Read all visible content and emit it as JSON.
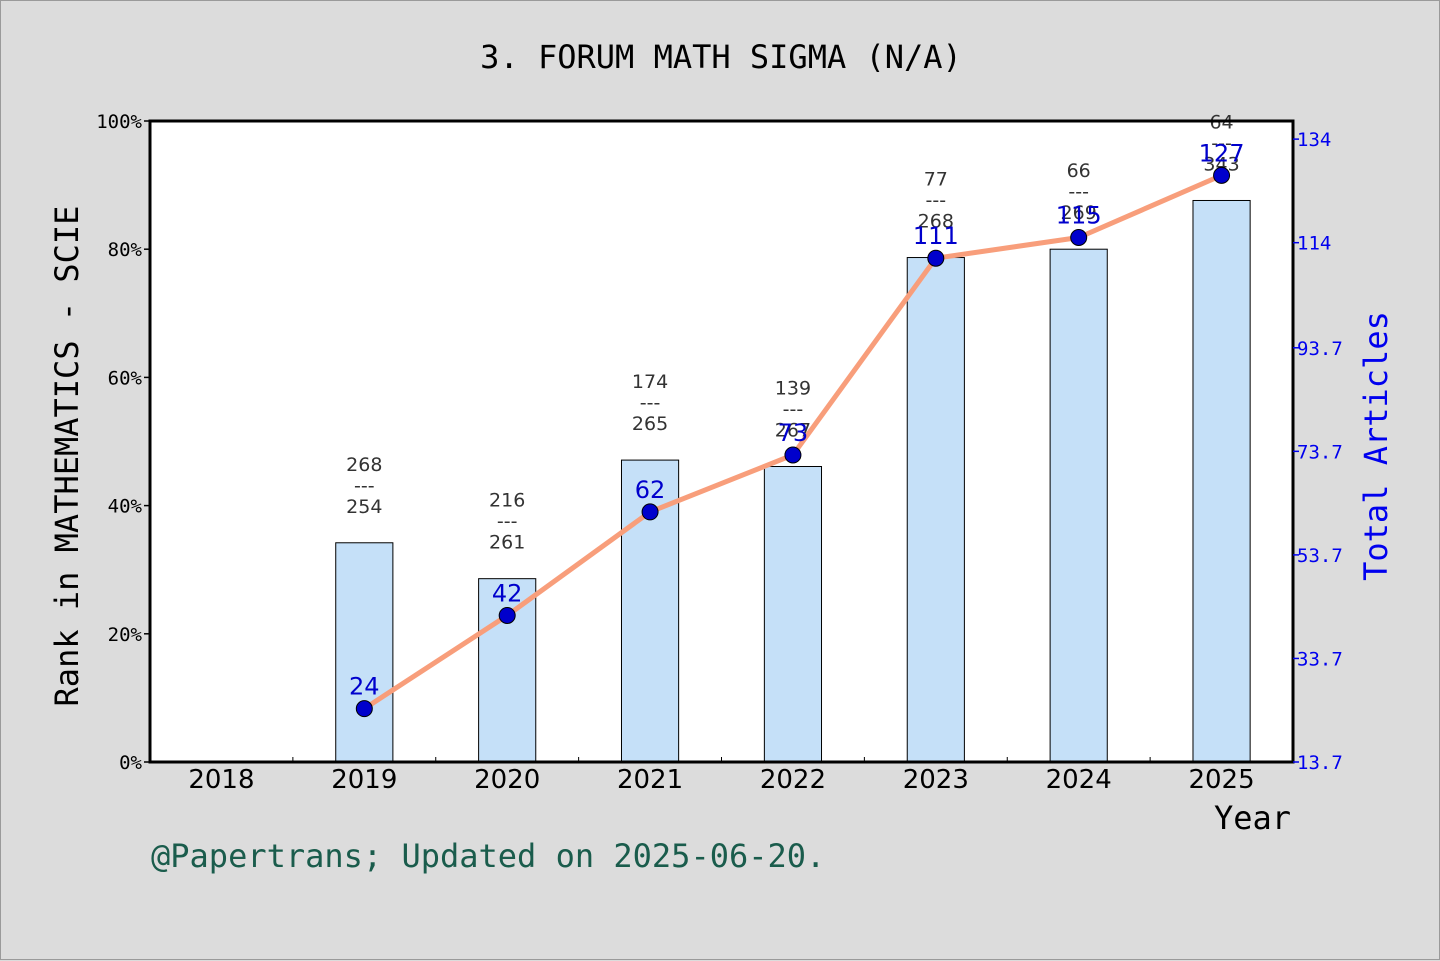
{
  "chart_data": {
    "type": "bar",
    "title": "3. FORUM MATH SIGMA (N/A)",
    "xlabel": "Year",
    "ylabel": "Rank in MATHEMATICS - SCIE",
    "y2label": "Total Articles",
    "categories": [
      "2018",
      "2019",
      "2020",
      "2021",
      "2022",
      "2023",
      "2024",
      "2025"
    ],
    "ylim": [
      0,
      100
    ],
    "y_ticks": [
      "0%",
      "20%",
      "40%",
      "60%",
      "80%",
      "100%"
    ],
    "y2lim": [
      13.7,
      137.5
    ],
    "y2_ticks": [
      "13.7",
      "33.7",
      "53.7",
      "73.7",
      "93.7",
      "114",
      "134"
    ],
    "series": [
      {
        "kind": "bar",
        "values": [
          null,
          34.2,
          28.6,
          47.1,
          46.1,
          78.7,
          80.0,
          87.6
        ],
        "rank_labels": [
          null,
          "268",
          "216",
          "174",
          "139",
          "77",
          "66",
          "64"
        ],
        "total_labels": [
          null,
          "254",
          "261",
          "265",
          "267",
          "268",
          "269",
          "343"
        ],
        "color": "#c5e0f8"
      },
      {
        "kind": "line",
        "axis": "right",
        "values": [
          null,
          24,
          42,
          62,
          73,
          111,
          115,
          127
        ],
        "labels": [
          null,
          "24",
          "42",
          "62",
          "73",
          "111",
          "115",
          "127"
        ],
        "line_color": "#f89e7b",
        "marker_color": "#0000cc"
      }
    ],
    "grid": false,
    "legend": "none"
  },
  "footer": "@Papertrans; Updated on 2025-06-20.",
  "colors": {
    "background": "#dcdcdc",
    "plot_bg": "#ffffff",
    "footer_text": "#1a5c4c",
    "right_axis": "#0000ee"
  }
}
